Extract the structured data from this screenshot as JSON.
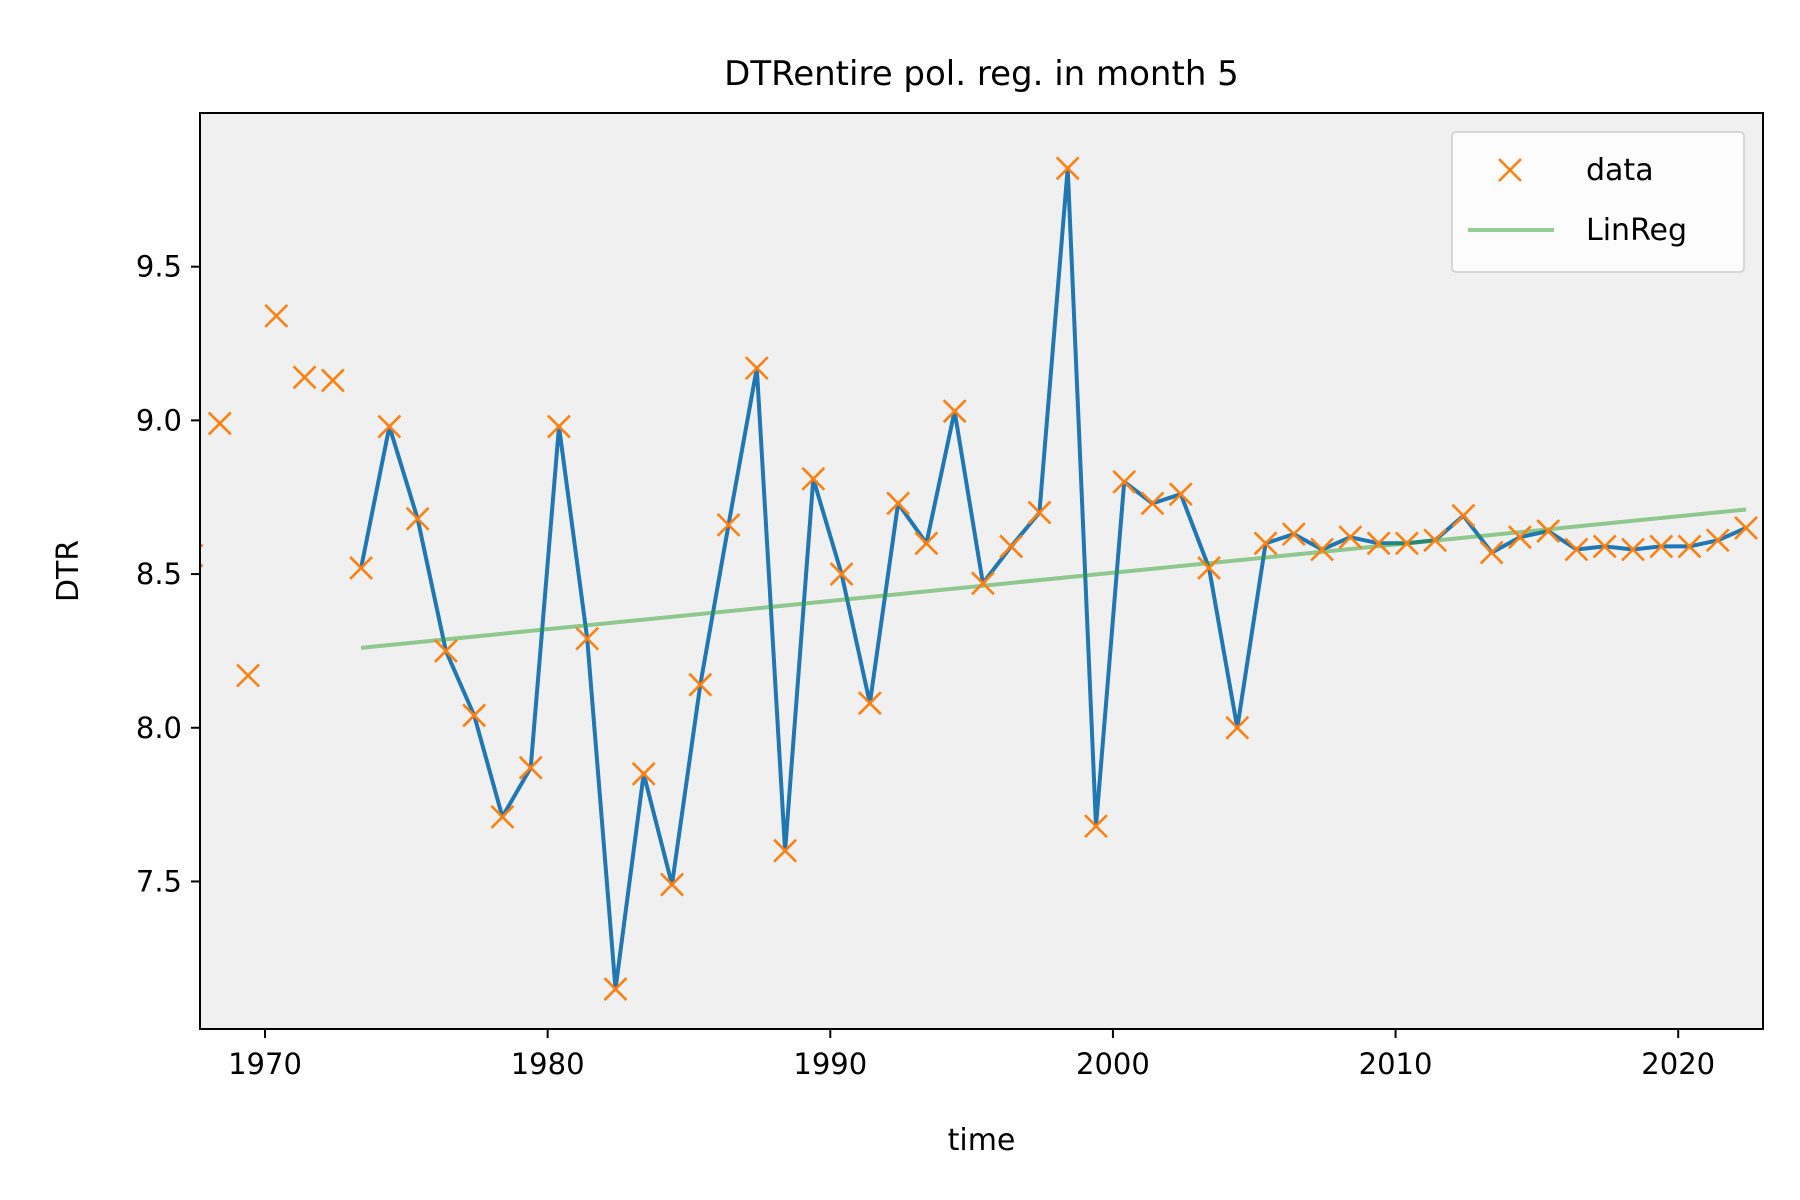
{
  "chart_data": {
    "type": "line",
    "title": "DTRentire pol. reg. in month 5",
    "xlabel": "time",
    "ylabel": "DTR",
    "xlim": [
      1967.7,
      2023.0
    ],
    "ylim": [
      7.02,
      10.0
    ],
    "xticks": [
      1970,
      1980,
      1990,
      2000,
      2010,
      2020
    ],
    "yticks": [
      7.5,
      8.0,
      8.5,
      9.0,
      9.5
    ],
    "grid": false,
    "legend_position": "top-right",
    "series": [
      {
        "name": "data",
        "kind": "markers",
        "marker": "x",
        "color": "#ff7f0e",
        "x": [
          1967.4,
          1968.4,
          1969.4,
          1970.4,
          1971.4,
          1972.4,
          1973.4,
          1974.4,
          1975.4,
          1976.4,
          1977.4,
          1978.4,
          1979.4,
          1980.4,
          1981.4,
          1982.4,
          1983.4,
          1984.4,
          1985.4,
          1986.4,
          1987.4,
          1988.4,
          1989.4,
          1990.4,
          1991.4,
          1992.4,
          1993.4,
          1994.4,
          1995.4,
          1996.4,
          1997.4,
          1998.4,
          1999.4,
          2000.4,
          2001.4,
          2002.4,
          2003.4,
          2004.4,
          2005.4,
          2006.4,
          2007.4,
          2008.4,
          2009.4,
          2010.4,
          2011.4,
          2012.4,
          2013.4,
          2014.4,
          2015.4,
          2016.4,
          2017.4,
          2018.4,
          2019.4,
          2020.4,
          2021.4,
          2022.4
        ],
        "y": [
          8.56,
          8.99,
          8.17,
          9.34,
          9.14,
          9.13,
          8.52,
          8.98,
          8.68,
          8.25,
          8.04,
          7.71,
          7.87,
          8.98,
          8.29,
          7.15,
          7.85,
          7.49,
          8.14,
          8.66,
          9.17,
          7.6,
          8.81,
          8.5,
          8.08,
          8.73,
          8.6,
          9.03,
          8.47,
          8.59,
          8.7,
          9.82,
          7.68,
          8.8,
          8.73,
          8.76,
          8.52,
          8.0,
          8.6,
          8.63,
          8.58,
          8.62,
          8.6,
          8.6,
          8.61,
          8.69,
          8.57,
          8.62,
          8.64,
          8.58,
          8.59,
          8.58,
          8.59,
          8.59,
          8.61,
          8.65
        ]
      },
      {
        "name": "",
        "kind": "line",
        "color": "#1f77b4",
        "x": [
          1973.4,
          1974.4,
          1975.4,
          1976.4,
          1977.4,
          1978.4,
          1979.4,
          1980.4,
          1981.4,
          1982.4,
          1983.4,
          1984.4,
          1985.4,
          1986.4,
          1987.4,
          1988.4,
          1989.4,
          1990.4,
          1991.4,
          1992.4,
          1993.4,
          1994.4,
          1995.4,
          1996.4,
          1997.4,
          1998.4,
          1999.4,
          2000.4,
          2001.4,
          2002.4,
          2003.4,
          2004.4,
          2005.4,
          2006.4,
          2007.4,
          2008.4,
          2009.4,
          2010.4,
          2011.4,
          2012.4,
          2013.4,
          2014.4,
          2015.4,
          2016.4,
          2017.4,
          2018.4,
          2019.4,
          2020.4,
          2021.4,
          2022.4
        ],
        "y": [
          8.52,
          8.98,
          8.68,
          8.25,
          8.04,
          7.71,
          7.87,
          8.98,
          8.29,
          7.15,
          7.85,
          7.49,
          8.14,
          8.66,
          9.17,
          7.6,
          8.81,
          8.5,
          8.08,
          8.73,
          8.6,
          9.03,
          8.47,
          8.59,
          8.7,
          9.82,
          7.68,
          8.8,
          8.73,
          8.76,
          8.52,
          8.0,
          8.6,
          8.63,
          8.58,
          8.62,
          8.6,
          8.6,
          8.61,
          8.69,
          8.57,
          8.62,
          8.64,
          8.58,
          8.59,
          8.58,
          8.59,
          8.59,
          8.61,
          8.65
        ]
      },
      {
        "name": "LinReg",
        "kind": "line",
        "color": "#2ca02c",
        "opacity": 0.5,
        "x": [
          1973.4,
          2022.4
        ],
        "y": [
          8.26,
          8.71
        ]
      }
    ]
  }
}
